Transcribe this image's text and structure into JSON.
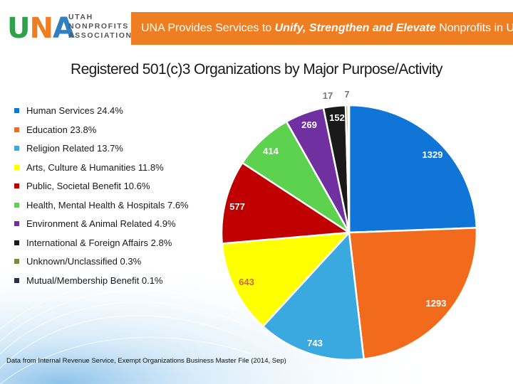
{
  "logo": {
    "mark_letters": [
      "U",
      "N",
      "A"
    ],
    "lines": [
      "UTAH",
      "NONPROFITS",
      "ASSOCIATION"
    ]
  },
  "banner": {
    "prefix": "UNA Provides Services to ",
    "emphasis": "Unify, Strengthen and Elevate",
    "suffix": " Nonprofits in Utah.",
    "color": "#ef7d22"
  },
  "footnote": "Data from Internal Revenue Service, Exempt Organizations Business Master File (2014, Sep)",
  "chart_data": {
    "type": "pie",
    "title": "Registered 501(c)3 Organizations by Major Purpose/Activity",
    "legend_position": "left",
    "slices": [
      {
        "name": "Human Services",
        "legend_label": "Human Services 24.4%",
        "value": 1329,
        "label": "1329",
        "color": "#0f76d8",
        "label_color": "#ffffff"
      },
      {
        "name": "Education",
        "legend_label": "Education 23.8%",
        "value": 1293,
        "label": "1293",
        "color": "#f26a1b",
        "label_color": "#ffffff"
      },
      {
        "name": "Religion Related",
        "legend_label": "Religion Related 13.7%",
        "value": 743,
        "label": "743",
        "color": "#3aa9e0",
        "label_color": "#ffffff"
      },
      {
        "name": "Arts, Culture & Humanities",
        "legend_label": "Arts, Culture & Humanities 11.8%",
        "value": 643,
        "label": "643",
        "color": "#ffff00",
        "label_color": "#c9702a"
      },
      {
        "name": "Public, Societal Benefit",
        "legend_label": "Public, Societal Benefit 10.6%",
        "value": 577,
        "label": "577",
        "color": "#c00000",
        "label_color": "#ffffff"
      },
      {
        "name": "Health, Mental Health & Hospitals",
        "legend_label": "Health, Mental Health & Hospitals 7.6%",
        "value": 414,
        "label": "414",
        "color": "#5cd24f",
        "label_color": "#ffffff"
      },
      {
        "name": "Environment & Animal Related",
        "legend_label": "Environment & Animal Related 4.9%",
        "value": 269,
        "label": "269",
        "color": "#7030a0",
        "label_color": "#ffffff"
      },
      {
        "name": "International & Foreign Affairs",
        "legend_label": "International & Foreign Affairs 2.8%",
        "value": 152,
        "label": "152",
        "color": "#1a1a1a",
        "label_color": "#ffffff"
      },
      {
        "name": "Unknown/Unclassified",
        "legend_label": "Unknown/Unclassified 0.3%",
        "value": 17,
        "label": "17",
        "color": "#7a8a3a",
        "label_color": "#777777"
      },
      {
        "name": "Mutual/Membership Benefit",
        "legend_label": "Mutual/Membership Benefit 0.1%",
        "value": 7,
        "label": "7",
        "color": "#2c2c4a",
        "label_color": "#777777"
      }
    ]
  }
}
